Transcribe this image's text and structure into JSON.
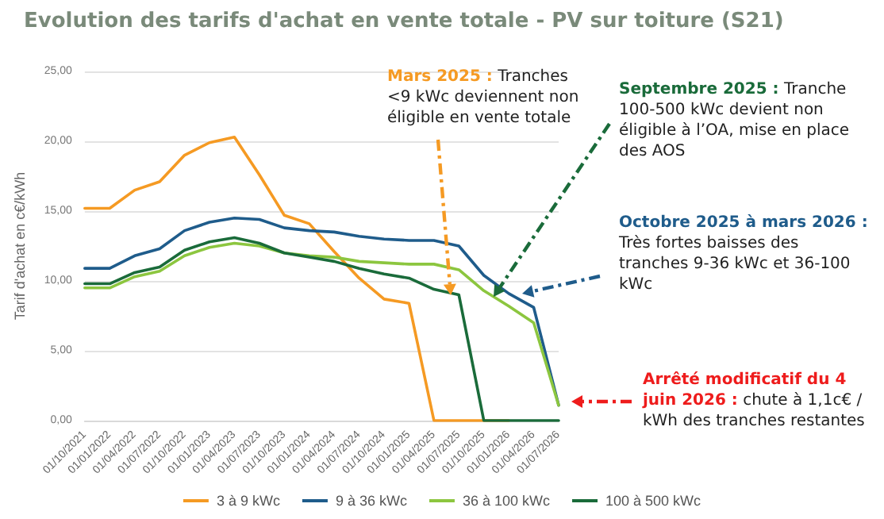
{
  "chart_data": {
    "type": "line",
    "title": "Evolution des tarifs d'achat en vente totale - PV sur toiture (S21)",
    "ylabel": "Tarif d'achat en c€/kWh",
    "categories": [
      "01/10/2021",
      "01/01/2022",
      "01/04/2022",
      "01/07/2022",
      "01/10/2022",
      "01/01/2023",
      "01/04/2023",
      "01/07/2023",
      "01/10/2023",
      "01/01/2024",
      "01/04/2024",
      "01/07/2024",
      "01/10/2024",
      "01/01/2025",
      "01/04/2025",
      "01/07/2025",
      "01/10/2025",
      "01/01/2026",
      "01/04/2026",
      "01/07/2026"
    ],
    "series": [
      {
        "name": "3 à 9 kWc",
        "color": "#f59a23",
        "values": [
          15.2,
          15.2,
          16.5,
          17.1,
          19.0,
          19.9,
          20.3,
          17.6,
          14.7,
          14.1,
          12.1,
          10.2,
          8.7,
          8.4,
          0,
          0,
          0,
          0,
          null,
          null
        ]
      },
      {
        "name": "9 à 36 kWc",
        "color": "#1f5c8b",
        "values": [
          10.9,
          10.9,
          11.8,
          12.3,
          13.6,
          14.2,
          14.5,
          14.4,
          13.8,
          13.6,
          13.5,
          13.2,
          13.0,
          12.9,
          12.9,
          12.5,
          10.4,
          9.1,
          8.1,
          1.1
        ]
      },
      {
        "name": "36 à 100 kWc",
        "color": "#8cc63f",
        "values": [
          9.5,
          9.5,
          10.3,
          10.7,
          11.8,
          12.4,
          12.7,
          12.5,
          12.0,
          11.8,
          11.7,
          11.4,
          11.3,
          11.2,
          11.2,
          10.8,
          9.3,
          8.2,
          7.0,
          1.1
        ]
      },
      {
        "name": "100 à 500 kWc",
        "color": "#1a6b3a",
        "values": [
          9.8,
          9.8,
          10.6,
          11.0,
          12.2,
          12.8,
          13.1,
          12.7,
          12.0,
          11.7,
          11.4,
          10.9,
          10.5,
          10.2,
          9.4,
          9.0,
          0,
          0,
          0,
          0
        ]
      }
    ],
    "ylim": [
      0,
      25
    ],
    "yticks": [
      {
        "value": 0,
        "label": "0,00"
      },
      {
        "value": 5,
        "label": "5,00"
      },
      {
        "value": 10,
        "label": "10,00"
      },
      {
        "value": 15,
        "label": "15,00"
      },
      {
        "value": 20,
        "label": "20,00"
      },
      {
        "value": 25,
        "label": "25,00"
      }
    ],
    "grid": "y",
    "legend": "bottom",
    "marker": "none",
    "line_style": "solid",
    "annotations": [
      "Mars 2025 : Tranches <9 kWc deviennent non éligible en vente totale",
      "Septembre 2025 : Tranche 100-500 kWc devient non éligible à l’OA, mise en place des AOS",
      "Octobre 2025 à mars 2026 : Très fortes baisses des tranches 9-36 kWc et 36-100 kWc",
      "Arrêté modificatif du 4 juin 2026 : chute à 1,1c€ / kWh des tranches restantes"
    ]
  }
}
